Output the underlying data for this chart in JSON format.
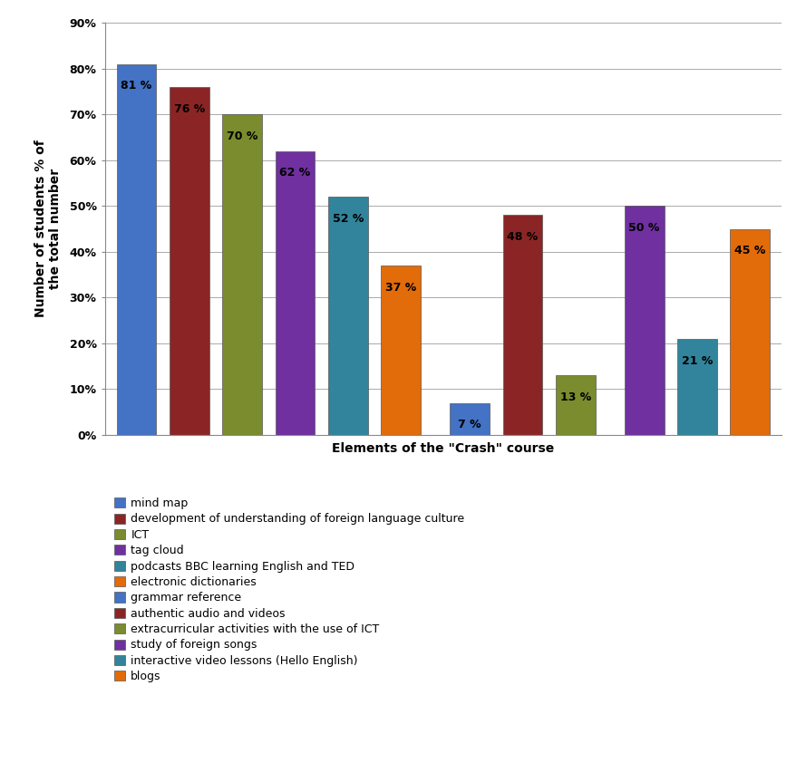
{
  "values": [
    81,
    76,
    70,
    62,
    52,
    37,
    7,
    48,
    13,
    50,
    21,
    45
  ],
  "colors": [
    "#4472C4",
    "#8B2525",
    "#7A8C2E",
    "#7030A0",
    "#31849B",
    "#E26B0A",
    "#4472C4",
    "#8B2525",
    "#7A8C2E",
    "#7030A0",
    "#31849B",
    "#E26B0A"
  ],
  "x_positions": [
    0,
    1,
    2,
    3,
    4,
    5,
    6.3,
    7.3,
    8.3,
    9.6,
    10.6,
    11.6
  ],
  "legend_labels": [
    "mind map",
    "development of understanding of foreign language culture",
    "ICT",
    "tag cloud",
    "podcasts BBC learning English and TED",
    "electronic dictionaries",
    "grammar reference",
    "authentic audio and videos",
    "extracurricular activities with the use of ICT",
    "study of foreign songs",
    "interactive video lessons (Hello English)",
    "blogs"
  ],
  "legend_colors": [
    "#4472C4",
    "#8B2525",
    "#7A8C2E",
    "#7030A0",
    "#31849B",
    "#E26B0A",
    "#4472C4",
    "#8B2525",
    "#7A8C2E",
    "#7030A0",
    "#31849B",
    "#E26B0A"
  ],
  "xlabel": "Elements of the \"Crash\" course",
  "ylabel": "Number of students % of\nthe total number",
  "ylim": [
    0,
    90
  ],
  "yticks": [
    0,
    10,
    20,
    30,
    40,
    50,
    60,
    70,
    80,
    90
  ],
  "ytick_labels": [
    "0%",
    "10%",
    "20%",
    "30%",
    "40%",
    "50%",
    "60%",
    "70%",
    "80%",
    "90%"
  ],
  "background_color": "#FFFFFF",
  "grid_color": "#AAAAAA",
  "bar_edge_color": "#555555",
  "label_fontsize": 9,
  "axis_label_fontsize": 10,
  "legend_fontsize": 9,
  "figure_background": "#FFFFFF",
  "bar_width": 0.75
}
